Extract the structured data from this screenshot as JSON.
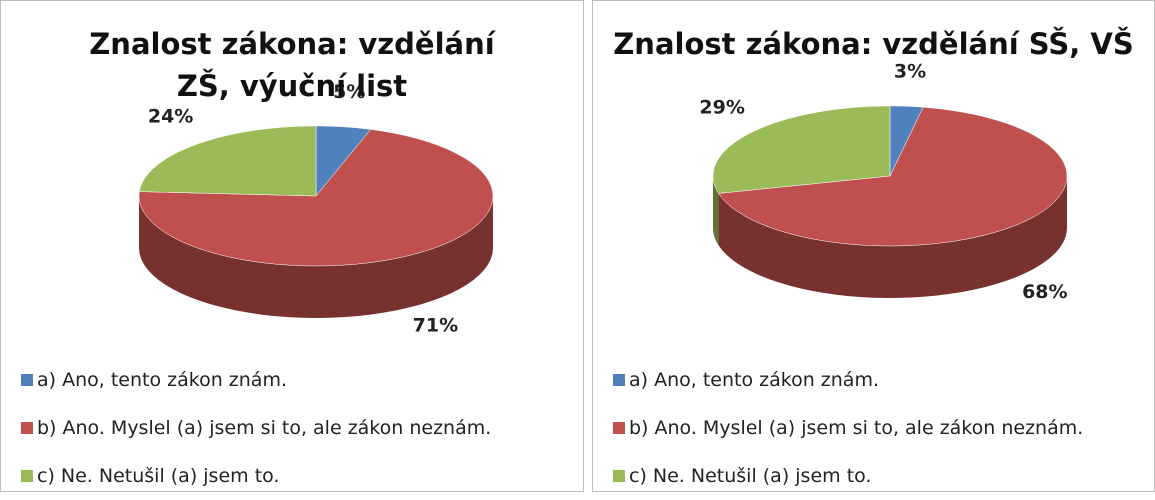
{
  "chart_data": [
    {
      "type": "pie",
      "title": "Znalost zákona: vzdělání ZŠ, výuční list",
      "categories": [
        "a) Ano, tento zákon znám.",
        "b) Ano. Myslel (a) jsem si to, ale zákon neznám.",
        "c) Ne. Netušil (a) jsem to."
      ],
      "values": [
        5,
        71,
        24
      ],
      "value_labels": [
        "5%",
        "71%",
        "24%"
      ],
      "colors": [
        "#4f81bd",
        "#c0504d",
        "#9bbb59"
      ]
    },
    {
      "type": "pie",
      "title": "Znalost zákona: vzdělání SŠ, VŠ",
      "categories": [
        "a) Ano, tento zákon znám.",
        "b) Ano. Myslel (a) jsem si to, ale zákon neznám.",
        "c) Ne. Netušil (a) jsem to."
      ],
      "values": [
        3,
        68,
        29
      ],
      "value_labels": [
        "3%",
        "68%",
        "29%"
      ],
      "colors": [
        "#4f81bd",
        "#c0504d",
        "#9bbb59"
      ]
    }
  ]
}
